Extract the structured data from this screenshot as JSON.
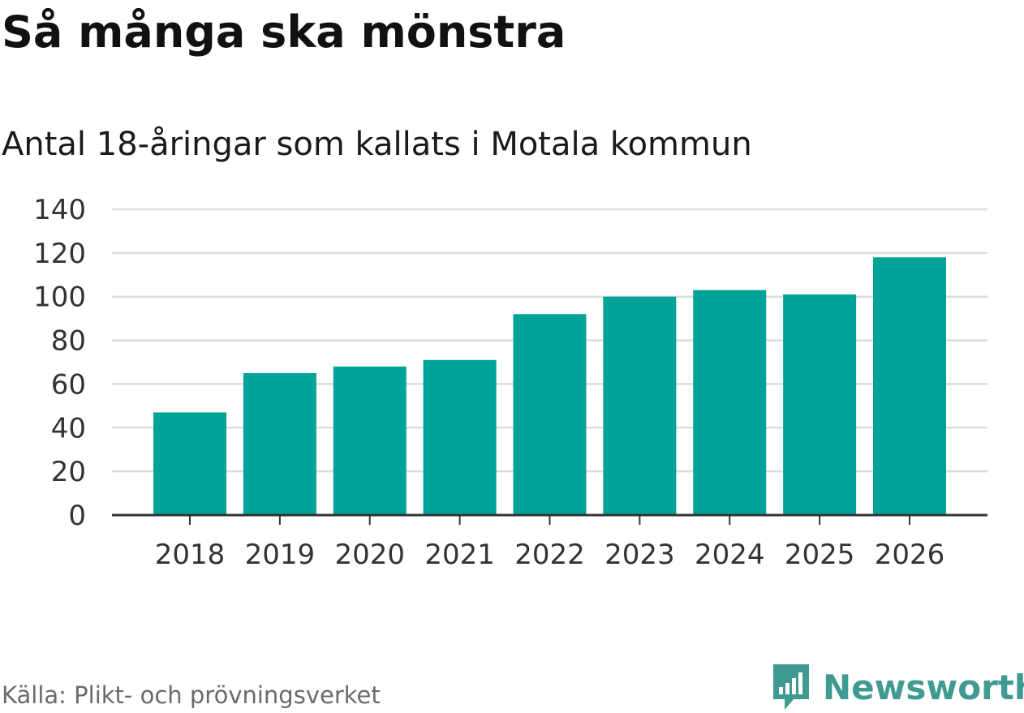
{
  "title": "Så många ska mönstra",
  "subtitle": "Antal 18-åringar som kallats i Motala kommun",
  "source": "Källa: Plikt- och prövningsverket",
  "brand": {
    "name": "Newsworthy",
    "icon": "newsworthy-logo-icon"
  },
  "colors": {
    "bar": "#00a398",
    "grid": "#dcdcdc",
    "axis": "#333333",
    "brand": "#3f9a91"
  },
  "chart_data": {
    "type": "bar",
    "title": "Så många ska mönstra",
    "subtitle": "Antal 18-åringar som kallats i Motala kommun",
    "xlabel": "",
    "ylabel": "",
    "categories": [
      "2018",
      "2019",
      "2020",
      "2021",
      "2022",
      "2023",
      "2024",
      "2025",
      "2026"
    ],
    "values": [
      47,
      65,
      68,
      71,
      92,
      100,
      103,
      101,
      118
    ],
    "ylim": [
      0,
      140
    ],
    "yticks": [
      0,
      20,
      40,
      60,
      80,
      100,
      120,
      140
    ],
    "grid": true,
    "legend": "none"
  }
}
